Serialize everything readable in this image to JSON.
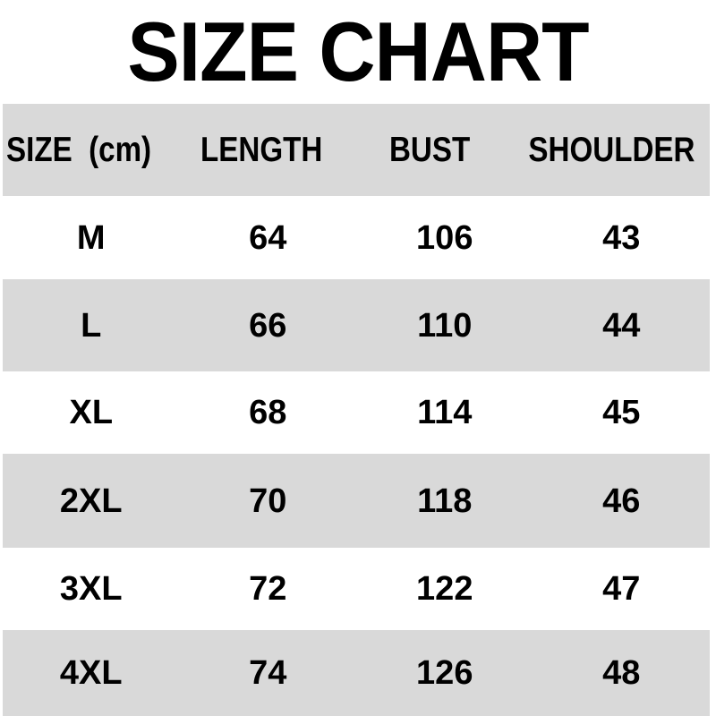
{
  "title": "SIZE CHART",
  "chart_data": {
    "type": "table",
    "title": "SIZE CHART",
    "unit": "cm",
    "columns": [
      "SIZE  (cm)",
      "LENGTH",
      "BUST",
      "SHOULDER"
    ],
    "rows": [
      [
        "M",
        64,
        106,
        43
      ],
      [
        "L",
        66,
        110,
        44
      ],
      [
        "XL",
        68,
        114,
        45
      ],
      [
        "2XL",
        70,
        118,
        46
      ],
      [
        "3XL",
        72,
        122,
        47
      ],
      [
        "4XL",
        74,
        126,
        48
      ]
    ]
  },
  "colors": {
    "band_gray": "#d9d9d9",
    "row_white": "#ffffff",
    "text": "#000000",
    "background": "#ffffff"
  }
}
